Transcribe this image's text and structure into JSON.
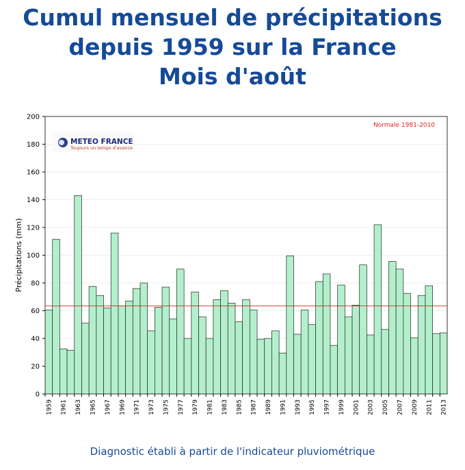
{
  "title_lines": [
    "Cumul mensuel de précipitations",
    "depuis 1959 sur la France",
    "Mois d'août"
  ],
  "footer": "Diagnostic établi à partir de l'indicateur pluviométrique",
  "logo": {
    "name": "METEO FRANCE",
    "tagline": "Toujours un temps d'avance"
  },
  "chart_data": {
    "type": "bar",
    "ylabel": "Précipitations (mm)",
    "xlabel": "",
    "ylim": [
      0,
      200
    ],
    "yticks": [
      0,
      20,
      40,
      60,
      80,
      100,
      120,
      140,
      160,
      180,
      200
    ],
    "grid": true,
    "categories": [
      1959,
      1960,
      1961,
      1962,
      1963,
      1964,
      1965,
      1966,
      1967,
      1968,
      1969,
      1970,
      1971,
      1972,
      1973,
      1974,
      1975,
      1976,
      1977,
      1978,
      1979,
      1980,
      1981,
      1982,
      1983,
      1984,
      1985,
      1986,
      1987,
      1988,
      1989,
      1990,
      1991,
      1992,
      1993,
      1994,
      1995,
      1996,
      1997,
      1998,
      1999,
      2000,
      2001,
      2002,
      2003,
      2004,
      2005,
      2006,
      2007,
      2008,
      2009,
      2010,
      2011,
      2012,
      2013
    ],
    "values": [
      60.5,
      111.5,
      32.5,
      31.5,
      143,
      51,
      77.5,
      71,
      62,
      116,
      63.5,
      67,
      76,
      80,
      45.5,
      62.5,
      77,
      54,
      90,
      40,
      73.5,
      55.5,
      40,
      68,
      74.5,
      65.5,
      52,
      68,
      60.5,
      39.5,
      40,
      45.5,
      29.5,
      99.5,
      43,
      60.5,
      50,
      81,
      86.5,
      35,
      78.5,
      55.5,
      64,
      93,
      42.5,
      122,
      46.5,
      95.5,
      90,
      72.5,
      40.5,
      71,
      78,
      43.5,
      44
    ],
    "reference_line": {
      "label": "Normale 1981-2010",
      "value": 63.5,
      "color": "#e02020"
    },
    "bar_color": "#b3efcc",
    "bar_edge_color": "#222222"
  }
}
